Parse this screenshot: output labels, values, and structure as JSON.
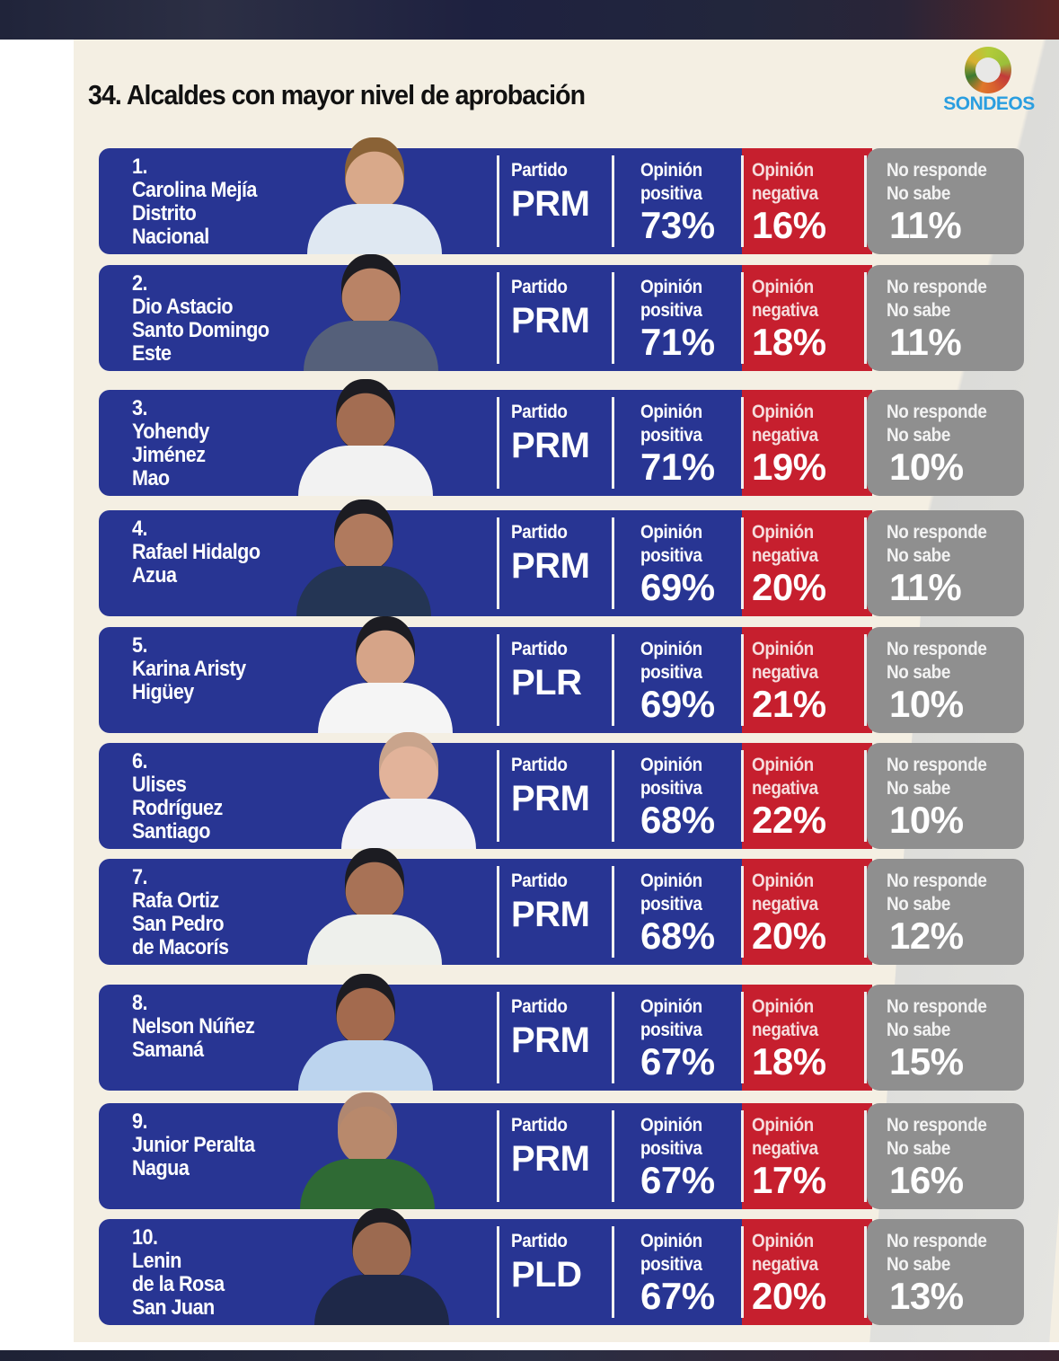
{
  "header": {
    "title": "34. Alcaldes con mayor nivel de aprobación",
    "logo_text": "SONDEOS"
  },
  "labels": {
    "party": "Partido",
    "positive_line1": "Opinión",
    "positive_line2": "positiva",
    "negative_line1": "Opinión",
    "negative_line2": "negativa",
    "nr_line1": "No responde",
    "nr_line2": "No sabe"
  },
  "colors": {
    "blue": "#283593",
    "red": "#c61f2e",
    "grey": "#8f8f8f",
    "background": "#f4efe3",
    "logo_blue": "#2a9ee0"
  },
  "rows": [
    {
      "rank": "1.",
      "lines": [
        "Carolina Mejía",
        "Distrito",
        "Nacional"
      ],
      "party": "PRM",
      "positive": "73%",
      "negative": "16%",
      "no_response": "11%"
    },
    {
      "rank": "2.",
      "lines": [
        "Dio Astacio",
        "Santo Domingo",
        "Este"
      ],
      "party": "PRM",
      "positive": "71%",
      "negative": "18%",
      "no_response": "11%"
    },
    {
      "rank": "3.",
      "lines": [
        "Yohendy",
        "Jiménez",
        "Mao"
      ],
      "party": "PRM",
      "positive": "71%",
      "negative": "19%",
      "no_response": "10%"
    },
    {
      "rank": "4.",
      "lines": [
        "Rafael Hidalgo",
        "Azua",
        ""
      ],
      "party": "PRM",
      "positive": "69%",
      "negative": "20%",
      "no_response": "11%"
    },
    {
      "rank": "5.",
      "lines": [
        "Karina Aristy",
        "Higüey",
        ""
      ],
      "party": "PLR",
      "positive": "69%",
      "negative": "21%",
      "no_response": "10%"
    },
    {
      "rank": "6.",
      "lines": [
        "Ulises",
        "Rodríguez",
        "Santiago"
      ],
      "party": "PRM",
      "positive": "68%",
      "negative": "22%",
      "no_response": "10%"
    },
    {
      "rank": "7.",
      "lines": [
        "Rafa Ortiz",
        "San Pedro",
        "de Macorís"
      ],
      "party": "PRM",
      "positive": "68%",
      "negative": "20%",
      "no_response": "12%"
    },
    {
      "rank": "8.",
      "lines": [
        "Nelson Núñez",
        "Samaná",
        ""
      ],
      "party": "PRM",
      "positive": "67%",
      "negative": "18%",
      "no_response": "15%"
    },
    {
      "rank": "9.",
      "lines": [
        "Junior Peralta",
        "Nagua",
        ""
      ],
      "party": "PRM",
      "positive": "67%",
      "negative": "17%",
      "no_response": "16%"
    },
    {
      "rank": "10.",
      "lines": [
        "Lenin",
        "de la Rosa",
        "San Juan"
      ],
      "party": "PLD",
      "positive": "67%",
      "negative": "20%",
      "no_response": "13%"
    }
  ]
}
